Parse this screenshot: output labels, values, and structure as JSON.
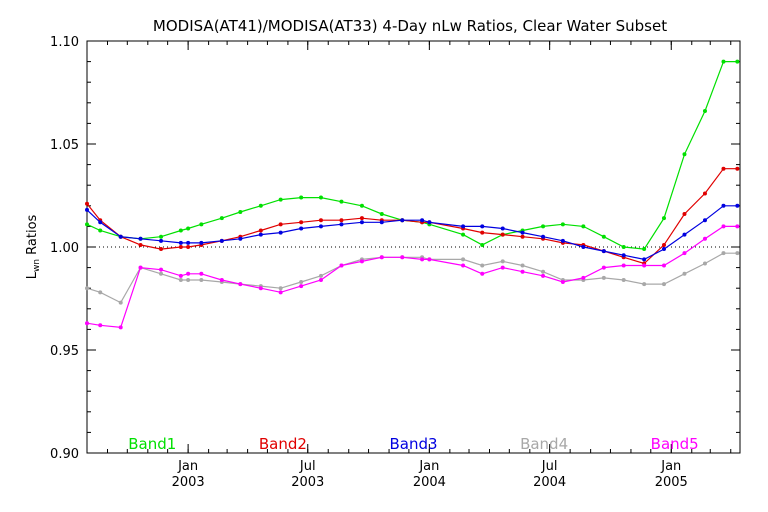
{
  "chart_data": {
    "type": "line",
    "title": "MODISA(AT41)/MODISA(AT33) 4-Day nLw Ratios, Clear Water Subset",
    "ylabel": "Lwn Ratios",
    "ylabel_main": "L",
    "ylabel_sub": "wn",
    "ylabel_rest": " Ratios",
    "ylim": [
      0.9,
      1.1
    ],
    "xlim": [
      "2002-08-01",
      "2005-04-15"
    ],
    "yticks": [
      "0.90",
      "0.95",
      "1.00",
      "1.05",
      "1.10"
    ],
    "yticks_values": [
      0.9,
      0.95,
      1.0,
      1.05,
      1.1
    ],
    "xticks": [
      {
        "month": "Jan",
        "year": "2003",
        "date": "2003-01-01"
      },
      {
        "month": "Jul",
        "year": "2003",
        "date": "2003-07-01"
      },
      {
        "month": "Jan",
        "year": "2004",
        "date": "2004-01-01"
      },
      {
        "month": "Jul",
        "year": "2004",
        "date": "2004-07-01"
      },
      {
        "month": "Jan",
        "year": "2005",
        "date": "2005-01-01"
      }
    ],
    "reference_line": 1.0,
    "legend_placement": "bottom",
    "x": [
      "2002-08-01",
      "2002-08-21",
      "2002-09-21",
      "2002-10-21",
      "2002-11-21",
      "2002-12-21",
      "2003-01-01",
      "2003-01-21",
      "2003-02-21",
      "2003-03-21",
      "2003-04-21",
      "2003-05-21",
      "2003-06-21",
      "2003-07-21",
      "2003-08-21",
      "2003-09-21",
      "2003-10-21",
      "2003-11-21",
      "2003-12-21",
      "2004-01-01",
      "2004-02-21",
      "2004-03-21",
      "2004-04-21",
      "2004-05-21",
      "2004-06-21",
      "2004-07-21",
      "2004-08-21",
      "2004-09-21",
      "2004-10-21",
      "2004-11-21",
      "2004-12-21",
      "2005-01-21",
      "2005-02-21",
      "2005-03-21",
      "2005-04-11"
    ],
    "series": [
      {
        "name": "Band1",
        "color": "#00e000",
        "values": [
          1.011,
          1.008,
          1.005,
          1.004,
          1.005,
          1.008,
          1.009,
          1.011,
          1.014,
          1.017,
          1.02,
          1.023,
          1.024,
          1.024,
          1.022,
          1.02,
          1.016,
          1.013,
          1.012,
          1.011,
          1.006,
          1.001,
          1.006,
          1.008,
          1.01,
          1.011,
          1.01,
          1.005,
          1.0,
          0.999,
          1.014,
          1.045,
          1.066,
          1.09,
          1.09
        ]
      },
      {
        "name": "Band2",
        "color": "#e00000",
        "values": [
          1.021,
          1.013,
          1.005,
          1.001,
          0.999,
          1.0,
          1.0,
          1.001,
          1.003,
          1.005,
          1.008,
          1.011,
          1.012,
          1.013,
          1.013,
          1.014,
          1.013,
          1.013,
          1.012,
          1.012,
          1.009,
          1.007,
          1.006,
          1.005,
          1.004,
          1.002,
          1.001,
          0.998,
          0.995,
          0.992,
          1.001,
          1.016,
          1.026,
          1.038,
          1.038
        ]
      },
      {
        "name": "Band3",
        "color": "#0000e0",
        "values": [
          1.018,
          1.012,
          1.005,
          1.004,
          1.003,
          1.002,
          1.002,
          1.002,
          1.003,
          1.004,
          1.006,
          1.007,
          1.009,
          1.01,
          1.011,
          1.012,
          1.012,
          1.013,
          1.013,
          1.012,
          1.01,
          1.01,
          1.009,
          1.007,
          1.005,
          1.003,
          1.0,
          0.998,
          0.996,
          0.994,
          0.999,
          1.006,
          1.013,
          1.02,
          1.02
        ]
      },
      {
        "name": "Band4",
        "color": "#a8a8a8",
        "values": [
          0.98,
          0.978,
          0.973,
          0.99,
          0.987,
          0.984,
          0.984,
          0.984,
          0.983,
          0.982,
          0.981,
          0.98,
          0.983,
          0.986,
          0.991,
          0.994,
          0.995,
          0.995,
          0.995,
          0.994,
          0.994,
          0.991,
          0.993,
          0.991,
          0.988,
          0.984,
          0.984,
          0.985,
          0.984,
          0.982,
          0.982,
          0.987,
          0.992,
          0.997,
          0.997
        ]
      },
      {
        "name": "Band5",
        "color": "#ff00ff",
        "values": [
          0.963,
          0.962,
          0.961,
          0.99,
          0.989,
          0.986,
          0.987,
          0.987,
          0.984,
          0.982,
          0.98,
          0.978,
          0.981,
          0.984,
          0.991,
          0.993,
          0.995,
          0.995,
          0.994,
          0.994,
          0.991,
          0.987,
          0.99,
          0.988,
          0.986,
          0.983,
          0.985,
          0.99,
          0.991,
          0.991,
          0.991,
          0.997,
          1.004,
          1.01,
          1.01
        ]
      }
    ]
  }
}
